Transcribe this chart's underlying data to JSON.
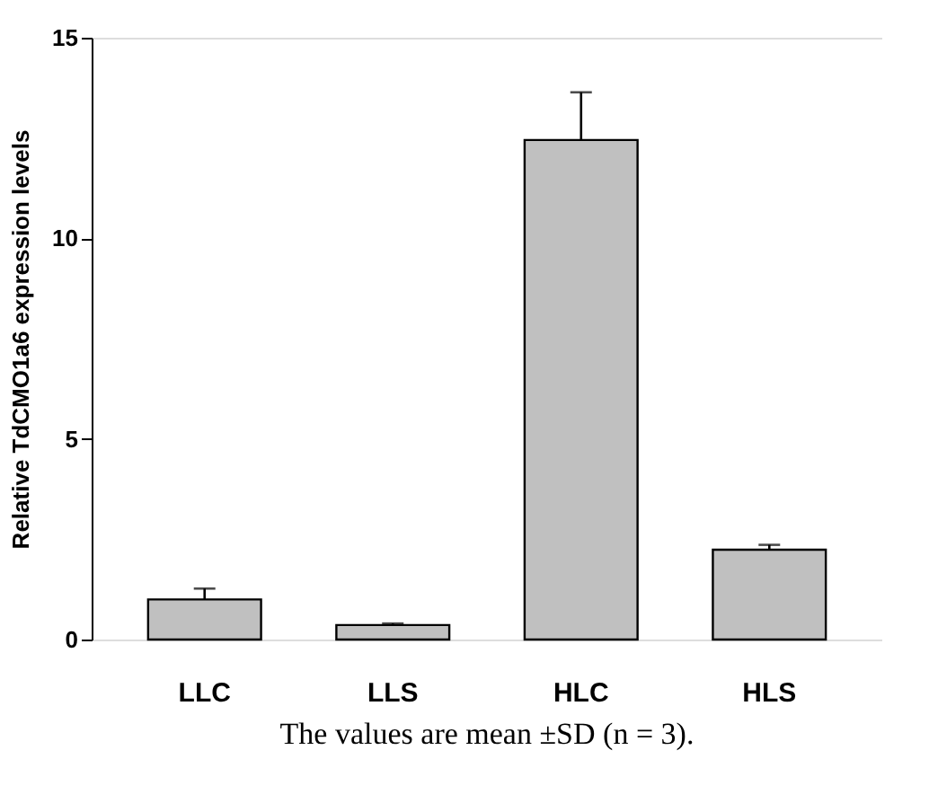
{
  "chart_data": {
    "type": "bar",
    "categories": [
      "LLC",
      "LLS",
      "HLC",
      "HLS"
    ],
    "values": [
      1.0,
      0.36,
      12.45,
      2.24
    ],
    "errors": [
      [
        1.0,
        1.27
      ],
      [
        0.36,
        0.4
      ],
      [
        12.45,
        13.64
      ],
      [
        2.24,
        2.36
      ]
    ],
    "color": "#c0c0c0",
    "ylabel": "Relative TdCMO1a6 expression levels",
    "ylim": [
      0,
      15
    ],
    "yticks": [
      0,
      5,
      10,
      15
    ],
    "grid": false,
    "annotations": [
      "The values are mean ±SD (n = 3)."
    ]
  }
}
